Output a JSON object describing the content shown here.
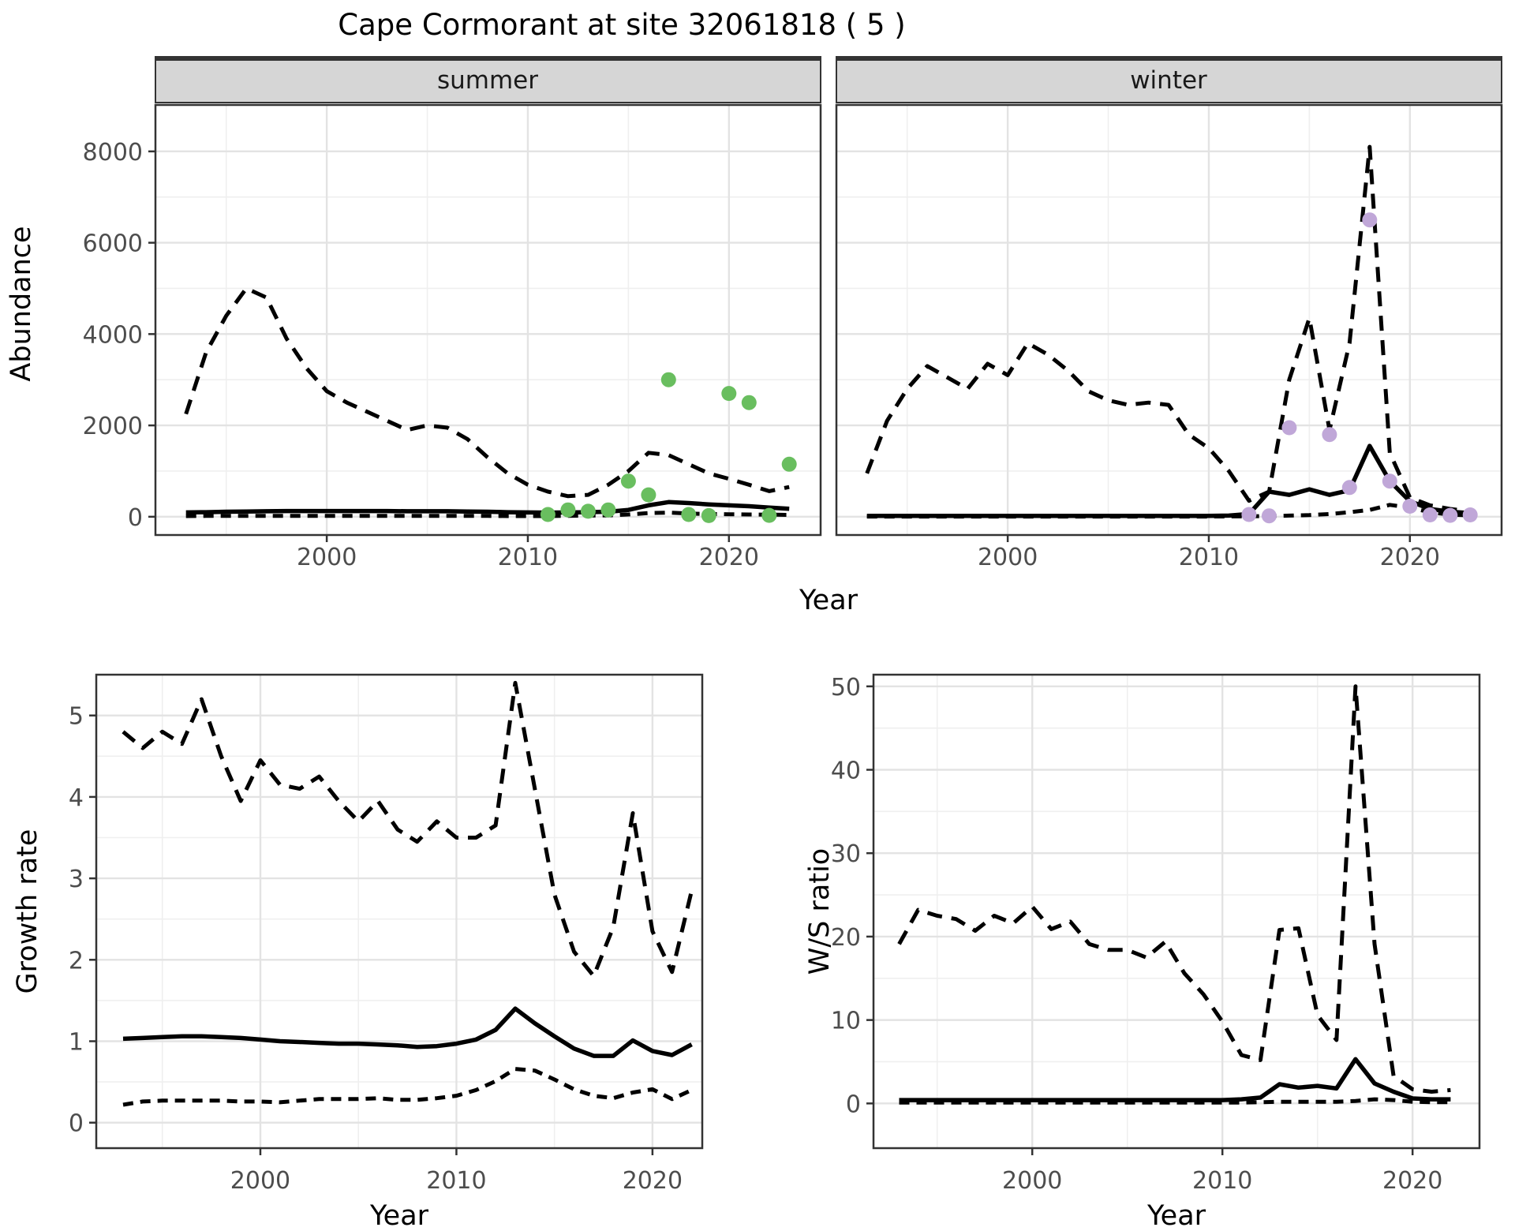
{
  "title": "Cape Cormorant at site 32061818 ( 5 )",
  "colors": {
    "summer_points": "#69be5f",
    "winter_points": "#c0a7d8",
    "line": "#000000",
    "grid_major": "#e3e3e3",
    "grid_minor": "#efefef",
    "panel_border": "#333333",
    "panel_bg": "#ffffff",
    "strip_fill": "#d6d6d6",
    "strip_border": "#333333",
    "tick_text": "#4d4d4d"
  },
  "chart_data": [
    {
      "id": "abundance",
      "type": "line",
      "xlabel": "Year",
      "ylabel": "Abundance",
      "x": [
        1993,
        1994,
        1995,
        1996,
        1997,
        1998,
        1999,
        2000,
        2001,
        2002,
        2003,
        2004,
        2005,
        2006,
        2007,
        2008,
        2009,
        2010,
        2011,
        2012,
        2013,
        2014,
        2015,
        2016,
        2017,
        2018,
        2019,
        2020,
        2021,
        2022,
        2023
      ],
      "xticks": [
        2000,
        2010,
        2020
      ],
      "xminor": [
        1995,
        2005,
        2015
      ],
      "yticks": [
        0,
        2000,
        4000,
        6000,
        8000
      ],
      "yminor": [
        1000,
        3000,
        5000,
        7000
      ],
      "xlim": [
        1991.48,
        2024.56
      ],
      "ylim": [
        -400,
        9017
      ],
      "grid": true,
      "legend": "none",
      "facets": [
        {
          "label": "summer",
          "series": [
            {
              "name": "upper_95ci",
              "style": "dashed",
              "values": [
                2250,
                3600,
                4400,
                5000,
                4800,
                3900,
                3250,
                2750,
                2500,
                2300,
                2100,
                1900,
                2000,
                1950,
                1700,
                1300,
                950,
                700,
                550,
                450,
                480,
                700,
                1000,
                1400,
                1350,
                1150,
                950,
                830,
                700,
                560,
                650
              ]
            },
            {
              "name": "median",
              "style": "solid",
              "values": [
                95,
                100,
                110,
                115,
                120,
                125,
                125,
                125,
                125,
                125,
                125,
                120,
                120,
                120,
                115,
                110,
                100,
                95,
                90,
                95,
                100,
                110,
                150,
                250,
                320,
                300,
                270,
                250,
                230,
                200,
                175
              ]
            },
            {
              "name": "lower_95ci",
              "style": "dashed-short",
              "values": [
                15,
                18,
                20,
                20,
                20,
                20,
                20,
                20,
                20,
                20,
                20,
                20,
                20,
                20,
                20,
                18,
                15,
                15,
                15,
                20,
                25,
                30,
                50,
                80,
                90,
                70,
                60,
                55,
                50,
                45,
                40
              ]
            }
          ],
          "points": {
            "name": "observed-counts",
            "color_key": "summer_points",
            "x": [
              2011,
              2012,
              2013,
              2014,
              2015,
              2016,
              2017,
              2018,
              2019,
              2020,
              2021,
              2022,
              2023
            ],
            "y": [
              50,
              150,
              120,
              150,
              780,
              480,
              3000,
              50,
              25,
              2700,
              2500,
              30,
              1150
            ]
          }
        },
        {
          "label": "winter",
          "series": [
            {
              "name": "upper_95ci",
              "style": "dashed",
              "values": [
                950,
                2100,
                2800,
                3300,
                3050,
                2800,
                3350,
                3100,
                3800,
                3550,
                3200,
                2750,
                2550,
                2450,
                2500,
                2450,
                1800,
                1500,
                1000,
                350,
                550,
                3000,
                4350,
                1900,
                3800,
                8100,
                1400,
                420,
                250,
                170,
                120
              ]
            },
            {
              "name": "median",
              "style": "solid",
              "values": [
                20,
                20,
                20,
                20,
                20,
                20,
                20,
                20,
                20,
                20,
                20,
                20,
                20,
                20,
                20,
                20,
                20,
                20,
                25,
                60,
                550,
                480,
                600,
                480,
                580,
                1550,
                780,
                340,
                170,
                110,
                80
              ]
            },
            {
              "name": "lower_95ci",
              "style": "dashed-short",
              "values": [
                5,
                5,
                5,
                5,
                5,
                5,
                5,
                5,
                5,
                5,
                5,
                5,
                5,
                5,
                5,
                5,
                5,
                5,
                8,
                10,
                15,
                25,
                35,
                60,
                100,
                150,
                260,
                200,
                100,
                45,
                30
              ]
            }
          ],
          "points": {
            "name": "observed-counts",
            "color_key": "winter_points",
            "x": [
              2012,
              2013,
              2014,
              2016,
              2017,
              2018,
              2019,
              2020,
              2021,
              2022,
              2023
            ],
            "y": [
              50,
              20,
              1950,
              1800,
              640,
              6500,
              780,
              230,
              40,
              30,
              40
            ]
          }
        }
      ]
    },
    {
      "id": "growth_rate",
      "type": "line",
      "xlabel": "Year",
      "ylabel": "Growth rate",
      "x": [
        1993,
        1994,
        1995,
        1996,
        1997,
        1998,
        1999,
        2000,
        2001,
        2002,
        2003,
        2004,
        2005,
        2006,
        2007,
        2008,
        2009,
        2010,
        2011,
        2012,
        2013,
        2014,
        2015,
        2016,
        2017,
        2018,
        2019,
        2020,
        2021,
        2022
      ],
      "xticks": [
        2000,
        2010,
        2020
      ],
      "xminor": [
        1995,
        2005,
        2015
      ],
      "yticks": [
        0,
        1,
        2,
        3,
        4,
        5
      ],
      "yminor": [
        0.5,
        1.5,
        2.5,
        3.5,
        4.5
      ],
      "xlim": [
        1991.63,
        2022.54
      ],
      "ylim": [
        -0.313,
        5.501
      ],
      "grid": true,
      "legend": "none",
      "series": [
        {
          "name": "upper_95ci",
          "style": "dashed",
          "values": [
            4.8,
            4.6,
            4.8,
            4.65,
            5.2,
            4.5,
            3.95,
            4.45,
            4.15,
            4.1,
            4.25,
            3.95,
            3.7,
            3.95,
            3.6,
            3.45,
            3.7,
            3.5,
            3.5,
            3.65,
            5.4,
            4.1,
            2.8,
            2.1,
            1.8,
            2.4,
            3.8,
            2.35,
            1.85,
            2.85
          ]
        },
        {
          "name": "median",
          "style": "solid",
          "values": [
            1.03,
            1.04,
            1.05,
            1.06,
            1.06,
            1.05,
            1.04,
            1.02,
            1.0,
            0.99,
            0.98,
            0.97,
            0.97,
            0.96,
            0.95,
            0.93,
            0.94,
            0.97,
            1.02,
            1.14,
            1.4,
            1.22,
            1.06,
            0.91,
            0.82,
            0.82,
            1.01,
            0.88,
            0.83,
            0.96
          ]
        },
        {
          "name": "lower_95ci",
          "style": "dashed-short",
          "values": [
            0.22,
            0.26,
            0.27,
            0.27,
            0.27,
            0.27,
            0.26,
            0.26,
            0.25,
            0.27,
            0.29,
            0.29,
            0.29,
            0.3,
            0.28,
            0.28,
            0.3,
            0.33,
            0.4,
            0.51,
            0.66,
            0.64,
            0.53,
            0.41,
            0.33,
            0.3,
            0.37,
            0.41,
            0.29,
            0.4
          ]
        }
      ]
    },
    {
      "id": "ws_ratio",
      "type": "line",
      "xlabel": "Year",
      "ylabel": "W/S ratio",
      "x": [
        1993,
        1994,
        1995,
        1996,
        1997,
        1998,
        1999,
        2000,
        2001,
        2002,
        2003,
        2004,
        2005,
        2006,
        2007,
        2008,
        2009,
        2010,
        2011,
        2012,
        2013,
        2014,
        2015,
        2016,
        2017,
        2018,
        2019,
        2020,
        2021,
        2022
      ],
      "xticks": [
        2000,
        2010,
        2020
      ],
      "xminor": [
        1995,
        2005,
        2015
      ],
      "yticks": [
        0,
        10,
        20,
        30,
        40,
        50
      ],
      "yminor": [
        5,
        15,
        25,
        35,
        45
      ],
      "xlim": [
        1991.65,
        2023.52
      ],
      "ylim": [
        -5.36,
        51.4
      ],
      "grid": true,
      "legend": "none",
      "series": [
        {
          "name": "upper_95ci",
          "style": "dashed",
          "values": [
            19.1,
            23.2,
            22.5,
            22.1,
            20.7,
            22.5,
            21.6,
            23.6,
            20.9,
            21.8,
            19.1,
            18.4,
            18.4,
            17.5,
            19.4,
            15.6,
            13.1,
            9.8,
            5.8,
            5.2,
            20.8,
            21.0,
            10.6,
            7.6,
            50.0,
            19.1,
            3.3,
            1.7,
            1.4,
            1.6
          ]
        },
        {
          "name": "median",
          "style": "solid",
          "values": [
            0.4,
            0.4,
            0.4,
            0.4,
            0.4,
            0.4,
            0.4,
            0.4,
            0.4,
            0.4,
            0.4,
            0.4,
            0.4,
            0.4,
            0.4,
            0.4,
            0.4,
            0.4,
            0.5,
            0.7,
            2.3,
            1.9,
            2.1,
            1.8,
            5.3,
            2.4,
            1.4,
            0.6,
            0.5,
            0.5
          ]
        },
        {
          "name": "lower_95ci",
          "style": "dashed-short",
          "values": [
            0.1,
            0.1,
            0.1,
            0.1,
            0.1,
            0.1,
            0.1,
            0.1,
            0.1,
            0.1,
            0.1,
            0.1,
            0.1,
            0.1,
            0.1,
            0.1,
            0.1,
            0.1,
            0.1,
            0.15,
            0.2,
            0.2,
            0.2,
            0.2,
            0.3,
            0.5,
            0.4,
            0.2,
            0.15,
            0.15
          ]
        }
      ]
    }
  ]
}
